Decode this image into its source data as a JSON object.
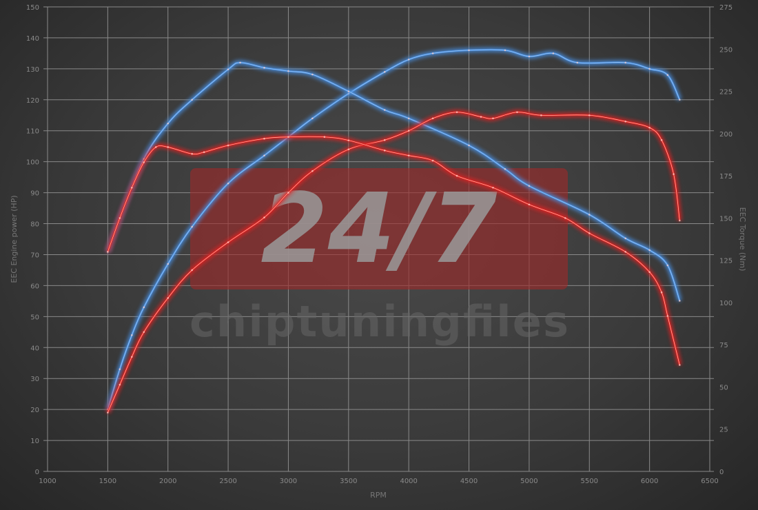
{
  "chart_data": {
    "type": "line",
    "xlabel": "RPM",
    "ylabel": "EEC Engine power (HP)",
    "y2label": "EEC Torque (Nm)",
    "xlim": [
      1000,
      6500
    ],
    "ylim": [
      0,
      150
    ],
    "y2lim": [
      0,
      275
    ],
    "xticks": [
      1000,
      1500,
      2000,
      2500,
      3000,
      3500,
      4000,
      4500,
      5000,
      5500,
      6000,
      6500
    ],
    "yticks": [
      0,
      10,
      20,
      30,
      40,
      50,
      60,
      70,
      80,
      90,
      100,
      110,
      120,
      130,
      140,
      150
    ],
    "y2ticks": [
      0,
      25,
      50,
      75,
      100,
      125,
      150,
      175,
      200,
      225,
      250,
      275
    ],
    "grid": true,
    "series": [
      {
        "axis": "left",
        "color": "#4a90e2",
        "x": [
          1500,
          1600,
          1700,
          1800,
          2000,
          2200,
          2500,
          2800,
          3000,
          3200,
          3500,
          3800,
          4000,
          4200,
          4500,
          4800,
          5000,
          5200,
          5400,
          5800,
          6000,
          6150,
          6250
        ],
        "values": [
          20,
          33,
          44,
          53,
          67,
          79,
          93,
          102,
          108,
          114,
          122,
          129,
          133,
          135,
          136,
          136,
          134,
          135,
          132,
          132,
          130,
          128,
          120
        ]
      },
      {
        "axis": "right",
        "color": "#4a90e2",
        "x": [
          1500,
          1600,
          1800,
          2000,
          2200,
          2500,
          2600,
          2800,
          3000,
          3200,
          3500,
          3800,
          4000,
          4500,
          4800,
          5000,
          5500,
          5800,
          6000,
          6150,
          6250
        ],
        "values": [
          130,
          150,
          185,
          206,
          220,
          238,
          242,
          239,
          237,
          235,
          225,
          214,
          209,
          193,
          179,
          169,
          152,
          138,
          131,
          122,
          101
        ]
      },
      {
        "axis": "left",
        "color": "#e02020",
        "x": [
          1500,
          1600,
          1700,
          1800,
          2000,
          2200,
          2500,
          2800,
          3000,
          3200,
          3500,
          3800,
          4000,
          4200,
          4400,
          4600,
          4700,
          4900,
          5100,
          5500,
          5800,
          6000,
          6100,
          6200,
          6250
        ],
        "values": [
          19,
          28,
          37,
          45,
          56,
          65,
          74,
          82,
          90,
          97,
          104,
          107,
          110,
          114,
          116,
          114.5,
          114,
          116,
          115,
          115,
          113,
          111,
          107,
          96,
          81
        ]
      },
      {
        "axis": "right",
        "color": "#e02020",
        "x": [
          1500,
          1600,
          1700,
          1800,
          1900,
          2000,
          2200,
          2300,
          2500,
          2800,
          3000,
          3300,
          3500,
          3800,
          4000,
          4200,
          4400,
          4700,
          5000,
          5300,
          5500,
          5800,
          6000,
          6100,
          6150,
          6250
        ],
        "values": [
          130,
          150,
          168,
          183,
          192,
          192,
          188,
          189,
          193,
          197,
          198,
          198,
          196,
          190,
          187,
          184,
          175,
          168,
          158,
          150,
          141,
          130,
          118,
          106,
          92,
          63
        ]
      }
    ]
  },
  "watermark": {
    "badge": "24/7",
    "brand": "chiptuningfiles"
  }
}
